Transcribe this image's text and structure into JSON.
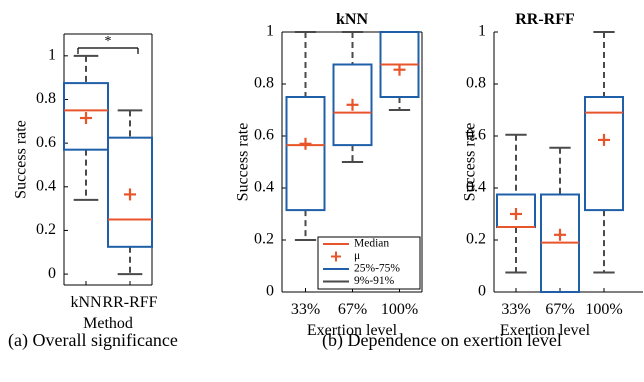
{
  "captions": {
    "a": "(a) Overall significance",
    "b": "(b) Dependence on exertion level"
  },
  "colors": {
    "box": "#1f5fa8",
    "median": "#e8552a",
    "mean": "#e8552a",
    "whisker": "#4a4a4a"
  },
  "chart_data": [
    {
      "type": "box",
      "title": "",
      "xlabel": "Method",
      "ylabel": "Success rate",
      "ylim": [
        -0.05,
        1.1
      ],
      "yticks": [
        0,
        0.2,
        0.4,
        0.6,
        0.8,
        1
      ],
      "ytick_labels": [
        "0",
        "0.2",
        "0.4",
        "0.6",
        "0.8",
        "1"
      ],
      "categories": [
        "kNN",
        "RR-RFF"
      ],
      "series": [
        {
          "category": "kNN",
          "whisker_low": 0.34,
          "q1": 0.57,
          "median": 0.75,
          "q3": 0.875,
          "whisker_high": 1.0,
          "mean": 0.715
        },
        {
          "category": "RR-RFF",
          "whisker_low": 0.0,
          "q1": 0.125,
          "median": 0.25,
          "q3": 0.625,
          "whisker_high": 0.75,
          "mean": 0.365
        }
      ],
      "annotation": "*"
    },
    {
      "type": "box",
      "title": "kNN",
      "xlabel": "Exertion level",
      "ylabel": "Success rate",
      "ylim": [
        0,
        1
      ],
      "yticks": [
        0,
        0.2,
        0.4,
        0.6,
        0.8,
        1
      ],
      "ytick_labels": [
        "0",
        "0.2",
        "0.4",
        "0.6",
        "0.8",
        "1"
      ],
      "categories": [
        "33%",
        "67%",
        "100%"
      ],
      "series": [
        {
          "category": "33%",
          "whisker_low": 0.2,
          "q1": 0.315,
          "median": 0.565,
          "q3": 0.75,
          "whisker_high": 1.0,
          "mean": 0.57
        },
        {
          "category": "67%",
          "whisker_low": 0.5,
          "q1": 0.565,
          "median": 0.69,
          "q3": 0.875,
          "whisker_high": 1.0,
          "mean": 0.72
        },
        {
          "category": "100%",
          "whisker_low": 0.7,
          "q1": 0.75,
          "median": 0.875,
          "q3": 1.0,
          "whisker_high": 1.0,
          "mean": 0.855
        }
      ],
      "legend": {
        "position": "bottom-right",
        "entries": [
          "Median",
          "μ",
          "25%-75%",
          "9%-91%"
        ]
      }
    },
    {
      "type": "box",
      "title": "RR-RFF",
      "xlabel": "Exertion level",
      "ylabel": "Success rate",
      "ylim": [
        0,
        1
      ],
      "yticks": [
        0,
        0.2,
        0.4,
        0.6,
        0.8,
        1
      ],
      "ytick_labels": [
        "0",
        "0.2",
        "0.4",
        "0.6",
        "0.8",
        "1"
      ],
      "categories": [
        "33%",
        "67%",
        "100%"
      ],
      "series": [
        {
          "category": "33%",
          "whisker_low": 0.075,
          "q1": 0.25,
          "median": 0.25,
          "q3": 0.375,
          "whisker_high": 0.605,
          "mean": 0.3
        },
        {
          "category": "67%",
          "whisker_low": 0.0,
          "q1": 0.0,
          "median": 0.19,
          "q3": 0.375,
          "whisker_high": 0.555,
          "mean": 0.22
        },
        {
          "category": "100%",
          "whisker_low": 0.075,
          "q1": 0.315,
          "median": 0.69,
          "q3": 0.75,
          "whisker_high": 1.0,
          "mean": 0.585
        }
      ]
    }
  ]
}
